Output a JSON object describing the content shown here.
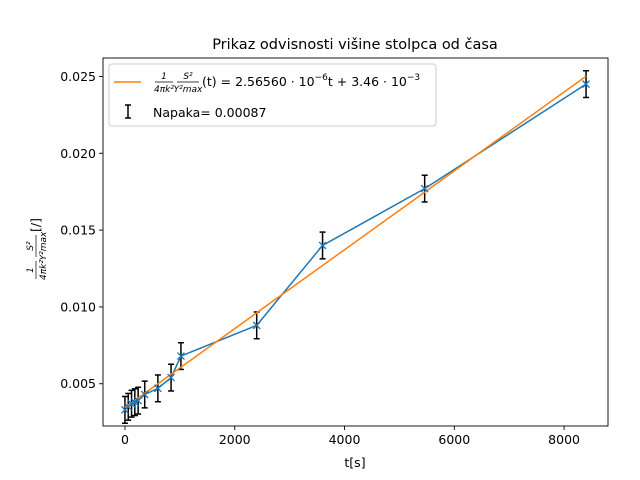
{
  "chart_data": {
    "type": "line",
    "title": "Prikaz odvisnosti višine stolpca od časa",
    "xlabel": "t[s]",
    "ylabel_parts": {
      "frac1_num": "1",
      "frac1_den": "4πk²",
      "frac2_num": "S²",
      "frac2_den": "Y²max",
      "unit": "[/]"
    },
    "xlim": [
      -400,
      8800
    ],
    "ylim": [
      0.00225,
      0.0262
    ],
    "x_ticks": [
      0,
      2000,
      4000,
      6000,
      8000
    ],
    "x_tick_labels": [
      "0",
      "2000",
      "4000",
      "6000",
      "8000"
    ],
    "y_ticks": [
      0.005,
      0.01,
      0.015,
      0.02,
      0.025
    ],
    "y_tick_labels": [
      "0.005",
      "0.010",
      "0.015",
      "0.020",
      "0.025"
    ],
    "grid": false,
    "legend_position": "top-left",
    "series": [
      {
        "marker": "x",
        "color": "#1f77b4",
        "x": [
          0,
          60,
          120,
          180,
          240,
          360,
          600,
          840,
          1020,
          2400,
          3600,
          5460,
          8400
        ],
        "y": [
          0.0033,
          0.0035,
          0.0037,
          0.0038,
          0.0039,
          0.0043,
          0.0047,
          0.0054,
          0.0068,
          0.0088,
          0.014,
          0.0177,
          0.0245
        ],
        "yerr": 0.00087,
        "legend_label": "Napaka= 0.00087"
      },
      {
        "kind": "fit",
        "color": "#ff7f0e",
        "slope": 2.5656e-06,
        "intercept": 0.00346,
        "x_range": [
          0,
          8400
        ],
        "legend_label_left": "(t) = 2.56560 · 10",
        "legend_exp1": "−6",
        "legend_label_mid": "t + 3.46 · 10",
        "legend_exp2": "−3"
      }
    ]
  }
}
